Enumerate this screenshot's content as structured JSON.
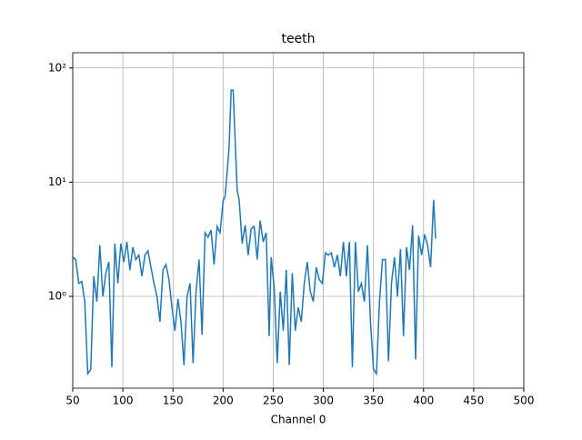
{
  "chart_data": {
    "type": "line",
    "title": "teeth",
    "xlabel": "Channel 0",
    "x": [
      50,
      53,
      56,
      59,
      62,
      65,
      68,
      71,
      74,
      77,
      80,
      83,
      86,
      89,
      92,
      95,
      98,
      101,
      104,
      107,
      110,
      113,
      116,
      119,
      122,
      125,
      128,
      131,
      134,
      137,
      140,
      143,
      146,
      149,
      152,
      155,
      158,
      161,
      164,
      167,
      170,
      173,
      176,
      179,
      182,
      185,
      188,
      191,
      194,
      197,
      200,
      202,
      204,
      206,
      208,
      210,
      212,
      214,
      216,
      219,
      222,
      225,
      228,
      231,
      234,
      237,
      240,
      243,
      246,
      248,
      251,
      254,
      257,
      260,
      263,
      266,
      269,
      272,
      275,
      278,
      281,
      284,
      287,
      290,
      293,
      296,
      299,
      302,
      305,
      308,
      311,
      314,
      317,
      320,
      323,
      326,
      329,
      332,
      335,
      338,
      341,
      344,
      347,
      350,
      353,
      356,
      359,
      362,
      365,
      368,
      371,
      374,
      377,
      380,
      383,
      386,
      389,
      392,
      395,
      398,
      401,
      404,
      407,
      410,
      412
    ],
    "series": [
      {
        "name": "Channel 0",
        "color": "#1f77b4",
        "values": [
          2.2,
          2.1,
          1.3,
          1.35,
          0.9,
          0.21,
          0.23,
          1.5,
          0.9,
          2.8,
          1.0,
          1.6,
          2.0,
          0.24,
          2.9,
          1.3,
          2.9,
          2.0,
          3.0,
          1.7,
          2.7,
          2.1,
          2.3,
          1.5,
          2.3,
          2.5,
          1.8,
          1.3,
          1.0,
          0.6,
          1.7,
          1.9,
          1.4,
          0.8,
          0.5,
          0.95,
          0.6,
          0.25,
          1.0,
          1.3,
          0.26,
          1.1,
          2.1,
          0.46,
          3.6,
          3.3,
          3.8,
          1.9,
          4.1,
          3.6,
          6.8,
          7.5,
          12,
          20,
          64,
          64,
          23,
          8.5,
          7.0,
          2.9,
          4.2,
          2.3,
          3.9,
          4.1,
          2.1,
          4.6,
          3.0,
          3.6,
          0.45,
          2.2,
          1.2,
          0.26,
          1.1,
          0.5,
          1.7,
          0.25,
          1.6,
          0.5,
          0.8,
          0.6,
          1.3,
          2.0,
          1.1,
          0.9,
          1.8,
          1.4,
          1.3,
          2.4,
          2.3,
          2.4,
          1.8,
          2.3,
          1.5,
          3.0,
          1.5,
          3.0,
          0.24,
          3.0,
          1.1,
          1.3,
          0.9,
          2.8,
          0.6,
          0.23,
          0.21,
          0.9,
          2.1,
          2.1,
          0.27,
          1.3,
          2.2,
          1.0,
          2.6,
          0.45,
          2.7,
          1.7,
          4.2,
          0.28,
          3.4,
          2.3,
          3.5,
          2.8,
          1.8,
          7.0,
          3.2
        ]
      }
    ],
    "xlim": [
      50,
      500
    ],
    "xticks": [
      50,
      100,
      150,
      200,
      250,
      300,
      350,
      400,
      450,
      500
    ],
    "ylim": [
      0.157,
      136
    ],
    "yticks": [
      {
        "value": 1,
        "label": "10⁰"
      },
      {
        "value": 10,
        "label": "10¹"
      },
      {
        "value": 100,
        "label": "10²"
      }
    ],
    "yscale": "log",
    "grid": true
  }
}
